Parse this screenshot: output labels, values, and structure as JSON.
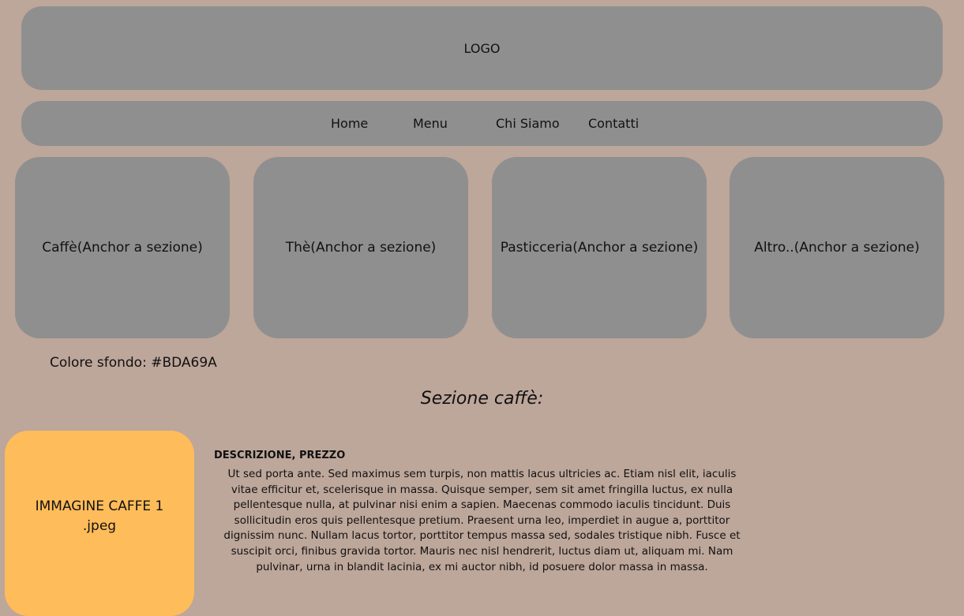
{
  "header": {
    "logo_label": "LOGO"
  },
  "nav": {
    "items": [
      {
        "label": "Home"
      },
      {
        "label": "Menu"
      },
      {
        "label": "Chi Siamo"
      },
      {
        "label": "Contatti"
      }
    ]
  },
  "cards": [
    {
      "label": "Caffè(Anchor a sezione)"
    },
    {
      "label": "Thè(Anchor a sezione)"
    },
    {
      "label": "Pasticceria(Anchor a sezione)"
    },
    {
      "label": "Altro..(Anchor a sezione)"
    }
  ],
  "note": {
    "background_text": "Colore sfondo: #BDA69A"
  },
  "section": {
    "title": "Sezione caffè:",
    "image_line1": "IMMAGINE CAFFE 1",
    "image_line2": ".jpeg",
    "description_title": "DESCRIZIONE, PREZZO",
    "description_text": "Ut sed porta ante. Sed maximus sem turpis, non mattis lacus ultricies ac. Etiam nisl elit, iaculis vitae efficitur et, scelerisque in massa. Quisque semper, sem sit amet fringilla luctus, ex nulla pellentesque nulla, at pulvinar nisi enim a sapien. Maecenas commodo iaculis tincidunt. Duis sollicitudin eros quis pellentesque pretium. Praesent urna leo, imperdiet in augue a, porttitor dignissim nunc. Nullam lacus tortor, porttitor tempus massa sed, sodales tristique nibh. Fusce et suscipit orci, finibus gravida tortor. Mauris nec nisl hendrerit, luctus diam ut, aliquam mi. Nam pulvinar, urna in blandit lacinia, ex mi auctor nibh, id posuere dolor massa in massa."
  },
  "colors": {
    "page_background": "#BDA69A",
    "block_gray": "#8F8F8F",
    "image_placeholder": "#FFBC5A"
  }
}
